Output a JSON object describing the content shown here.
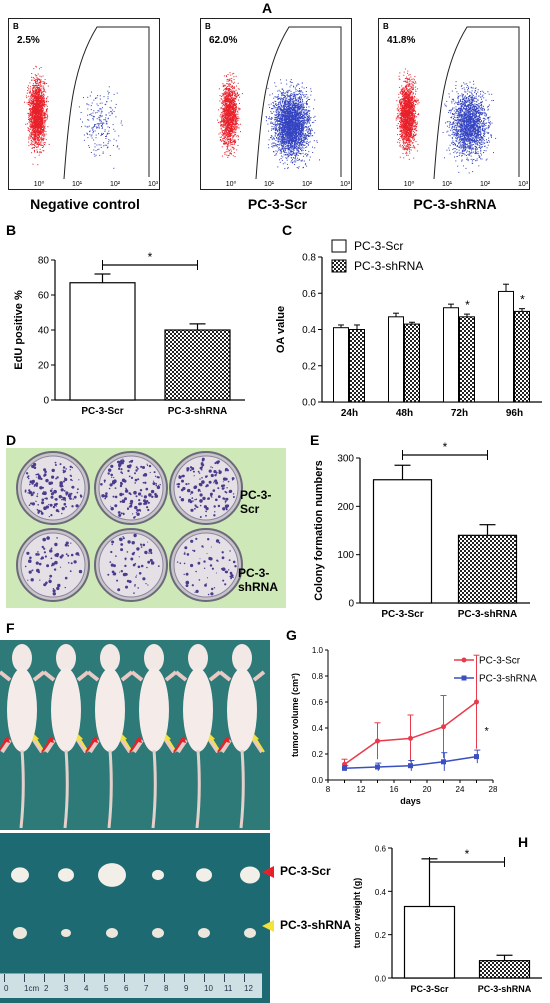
{
  "panel_letters": {
    "A": "A",
    "B": "B",
    "C": "C",
    "D": "D",
    "E": "E",
    "F": "F",
    "G": "G",
    "H": "H"
  },
  "flow": {
    "inner_label": "B",
    "panels": [
      {
        "pct": "2.5%",
        "caption": "Negative control",
        "red_count": 1800,
        "blue_count": 220
      },
      {
        "pct": "62.0%",
        "caption": "PC-3-Scr",
        "red_count": 1400,
        "blue_count": 2800
      },
      {
        "pct": "41.8%",
        "caption": "PC-3-shRNA",
        "red_count": 1700,
        "blue_count": 1900
      }
    ],
    "ticks": [
      "10⁰",
      "10¹",
      "10²",
      "10³"
    ],
    "colors": {
      "red": "#e8202a",
      "blue": "#3343c0"
    }
  },
  "chart_data": [
    {
      "id": "B",
      "type": "bar",
      "categories": [
        "PC-3-Scr",
        "PC-3-shRNA"
      ],
      "values": [
        67,
        40
      ],
      "errors": [
        5,
        3.5
      ],
      "ylabel": "EdU positive %",
      "ylim": [
        0,
        80
      ],
      "yticks": [
        0,
        20,
        40,
        60,
        80
      ],
      "significance": "*"
    },
    {
      "id": "C",
      "type": "bar",
      "categories": [
        "24h",
        "48h",
        "72h",
        "96h"
      ],
      "series": [
        {
          "name": "PC-3-Scr",
          "values": [
            0.41,
            0.47,
            0.52,
            0.61
          ],
          "errors": [
            0.015,
            0.02,
            0.02,
            0.04
          ]
        },
        {
          "name": "PC-3-shRNA",
          "values": [
            0.4,
            0.43,
            0.47,
            0.5
          ],
          "errors": [
            0.025,
            0.01,
            0.015,
            0.015
          ]
        }
      ],
      "stars": [
        "",
        "",
        "*",
        "*"
      ],
      "ylabel": "OA value",
      "ylim": [
        0,
        0.8
      ],
      "yticks": [
        "0.0",
        "0.2",
        "0.4",
        "0.6",
        "0.8"
      ]
    },
    {
      "id": "E",
      "type": "bar",
      "categories": [
        "PC-3-Scr",
        "PC-3-shRNA"
      ],
      "values": [
        255,
        140
      ],
      "errors": [
        30,
        22
      ],
      "ylabel": "Colony formation numbers",
      "ylim": [
        0,
        300
      ],
      "yticks": [
        0,
        100,
        200,
        300
      ],
      "significance": "*"
    },
    {
      "id": "G",
      "type": "line",
      "x": [
        10,
        14,
        18,
        22,
        26
      ],
      "series": [
        {
          "name": "PC-3-Scr",
          "values": [
            0.12,
            0.3,
            0.32,
            0.41,
            0.6
          ],
          "errors": [
            0.04,
            0.14,
            0.18,
            0.24,
            0.36
          ]
        },
        {
          "name": "PC-3-shRNA",
          "values": [
            0.09,
            0.1,
            0.11,
            0.14,
            0.18
          ],
          "errors": [
            0.02,
            0.03,
            0.04,
            0.07,
            0.05
          ]
        }
      ],
      "xlabel": "days",
      "ylabel": "tumor volume (cm³)",
      "xlim": [
        8,
        28
      ],
      "ylim": [
        0,
        1.0
      ],
      "xticks": [
        8,
        10,
        12,
        14,
        16,
        18,
        20,
        22,
        24,
        26,
        28
      ],
      "yticks": [
        "0.0",
        "0.2",
        "0.4",
        "0.6",
        "0.8",
        "1.0"
      ],
      "star": "*"
    },
    {
      "id": "H",
      "type": "bar",
      "categories": [
        "PC-3-Scr",
        "PC-3-shRNA"
      ],
      "values": [
        0.33,
        0.08
      ],
      "errors": [
        0.22,
        0.025
      ],
      "ylabel": "tumor weight (g)",
      "ylim": [
        0,
        0.6
      ],
      "yticks": [
        "0.0",
        "0.2",
        "0.4",
        "0.6"
      ],
      "significance": "*"
    }
  ],
  "colony": {
    "label_scr": "PC-3-Scr",
    "label_shrna": "PC-3-shRNA"
  },
  "mice": {
    "label_scr": "PC-3-Scr",
    "label_shrna": "PC-3-shRNA",
    "ruler": [
      "0",
      "1cm",
      "2",
      "3",
      "4",
      "5",
      "6",
      "7",
      "8",
      "9",
      "10",
      "11",
      "12"
    ]
  }
}
